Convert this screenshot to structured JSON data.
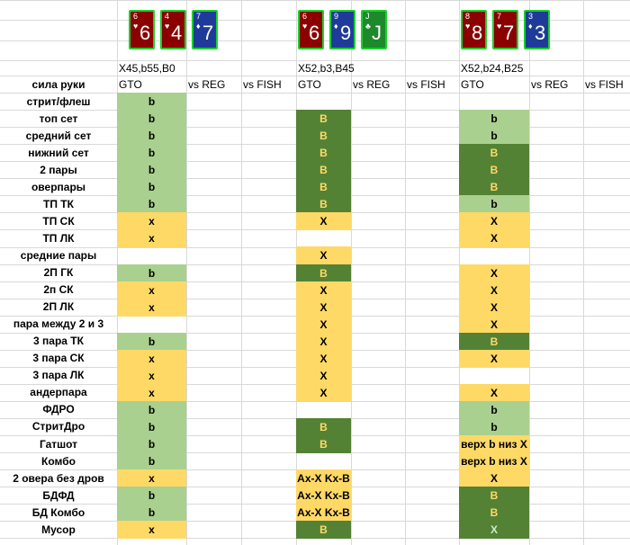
{
  "colors": {
    "light_green": "#a9d08e",
    "dark_green": "#548235",
    "yellow": "#ffd966",
    "white": "#ffffff",
    "text_dark": "#000000",
    "text_yellow": "#ffd966",
    "text_green": "#c6efce",
    "card_red": "#8b0000",
    "card_blue": "#1f3b9a",
    "card_green": "#1c8a2a",
    "card_border": "#19d12a"
  },
  "boards": [
    {
      "cards": [
        {
          "rank": "6",
          "suit": "♥",
          "color": "red"
        },
        {
          "rank": "4",
          "suit": "♥",
          "color": "red"
        },
        {
          "rank": "7",
          "suit": "♦",
          "color": "blue"
        }
      ],
      "sizing": "X45,b55,B0"
    },
    {
      "cards": [
        {
          "rank": "6",
          "suit": "♥",
          "color": "red"
        },
        {
          "rank": "9",
          "suit": "♦",
          "color": "blue"
        },
        {
          "rank": "J",
          "suit": "♣",
          "color": "green"
        }
      ],
      "sizing": "X52,b3,B45"
    },
    {
      "cards": [
        {
          "rank": "8",
          "suit": "♥",
          "color": "red"
        },
        {
          "rank": "7",
          "suit": "♥",
          "color": "red"
        },
        {
          "rank": "3",
          "suit": "♦",
          "color": "blue"
        }
      ],
      "sizing": "X52,b24,B25"
    }
  ],
  "header": {
    "row_label": "сила руки",
    "columns": [
      "GTO",
      "vs REG",
      "vs FISH"
    ]
  },
  "rows": [
    {
      "label": "стрит/флеш",
      "v": [
        [
          "b",
          "L"
        ],
        [
          "",
          ""
        ],
        [
          "",
          ""
        ]
      ]
    },
    {
      "label": "топ сет",
      "v": [
        [
          "b",
          "L"
        ],
        [
          "B",
          "D"
        ],
        [
          "b",
          "L"
        ]
      ]
    },
    {
      "label": "средний сет",
      "v": [
        [
          "b",
          "L"
        ],
        [
          "B",
          "D"
        ],
        [
          "b",
          "L"
        ]
      ]
    },
    {
      "label": "нижний сет",
      "v": [
        [
          "b",
          "L"
        ],
        [
          "B",
          "D"
        ],
        [
          "B",
          "D"
        ]
      ]
    },
    {
      "label": "2 пары",
      "v": [
        [
          "b",
          "L"
        ],
        [
          "B",
          "D"
        ],
        [
          "B",
          "D"
        ]
      ]
    },
    {
      "label": "оверпары",
      "v": [
        [
          "b",
          "L"
        ],
        [
          "B",
          "D"
        ],
        [
          "B",
          "D"
        ]
      ]
    },
    {
      "label": "ТП ТК",
      "v": [
        [
          "b",
          "L"
        ],
        [
          "B",
          "D"
        ],
        [
          "b",
          "L"
        ]
      ]
    },
    {
      "label": "ТП СК",
      "v": [
        [
          "x",
          "Y"
        ],
        [
          "X",
          "Y"
        ],
        [
          "X",
          "Y"
        ]
      ]
    },
    {
      "label": "ТП ЛК",
      "v": [
        [
          "x",
          "Y"
        ],
        [
          "",
          ""
        ],
        [
          "X",
          "Y"
        ]
      ]
    },
    {
      "label": "средние пары",
      "v": [
        [
          "",
          ""
        ],
        [
          "X",
          "Y"
        ],
        [
          "",
          ""
        ]
      ]
    },
    {
      "label": "2П ГК",
      "v": [
        [
          "b",
          "L"
        ],
        [
          "B",
          "D"
        ],
        [
          "X",
          "Y"
        ]
      ]
    },
    {
      "label": "2п СК",
      "v": [
        [
          "x",
          "Y"
        ],
        [
          "X",
          "Y"
        ],
        [
          "X",
          "Y"
        ]
      ]
    },
    {
      "label": "2П ЛК",
      "v": [
        [
          "x",
          "Y"
        ],
        [
          "X",
          "Y"
        ],
        [
          "X",
          "Y"
        ]
      ]
    },
    {
      "label": "пара между 2 и 3",
      "v": [
        [
          "",
          ""
        ],
        [
          "X",
          "Y"
        ],
        [
          "X",
          "Y"
        ]
      ]
    },
    {
      "label": "3 пара ТК",
      "v": [
        [
          "b",
          "L"
        ],
        [
          "X",
          "Y"
        ],
        [
          "B",
          "D"
        ]
      ]
    },
    {
      "label": "3 пара СК",
      "v": [
        [
          "x",
          "Y"
        ],
        [
          "X",
          "Y"
        ],
        [
          "X",
          "Y"
        ]
      ]
    },
    {
      "label": "3 пара ЛК",
      "v": [
        [
          "x",
          "Y"
        ],
        [
          "X",
          "Y"
        ],
        [
          "",
          ""
        ]
      ]
    },
    {
      "label": "андерпара",
      "v": [
        [
          "x",
          "Y"
        ],
        [
          "X",
          "Y"
        ],
        [
          "X",
          "Y"
        ]
      ]
    },
    {
      "label": "ФДРО",
      "v": [
        [
          "b",
          "L"
        ],
        [
          "",
          ""
        ],
        [
          "b",
          "L"
        ]
      ]
    },
    {
      "label": "СтритДро",
      "v": [
        [
          "b",
          "L"
        ],
        [
          "B",
          "D"
        ],
        [
          "b",
          "L"
        ]
      ]
    },
    {
      "label": "Гатшот",
      "v": [
        [
          "b",
          "L"
        ],
        [
          "B",
          "D"
        ],
        [
          "верх b низ X",
          "Y"
        ]
      ]
    },
    {
      "label": "Комбо",
      "v": [
        [
          "b",
          "L"
        ],
        [
          "",
          ""
        ],
        [
          "верх b низ X",
          "Y"
        ]
      ]
    },
    {
      "label": "2 овера без дров",
      "v": [
        [
          "x",
          "Y"
        ],
        [
          "Ax-X Kx-B",
          "Y"
        ],
        [
          "X",
          "Y"
        ]
      ]
    },
    {
      "label": "БДФД",
      "v": [
        [
          "b",
          "L"
        ],
        [
          "Ax-X Kx-B",
          "Y"
        ],
        [
          "B",
          "D"
        ]
      ]
    },
    {
      "label": "БД Комбо",
      "v": [
        [
          "b",
          "L"
        ],
        [
          "Ax-X Kx-B",
          "Y"
        ],
        [
          "B",
          "D"
        ]
      ]
    },
    {
      "label": "Мусор",
      "v": [
        [
          "x",
          "Y"
        ],
        [
          "B",
          "D"
        ],
        [
          "X",
          "DG"
        ]
      ]
    }
  ]
}
